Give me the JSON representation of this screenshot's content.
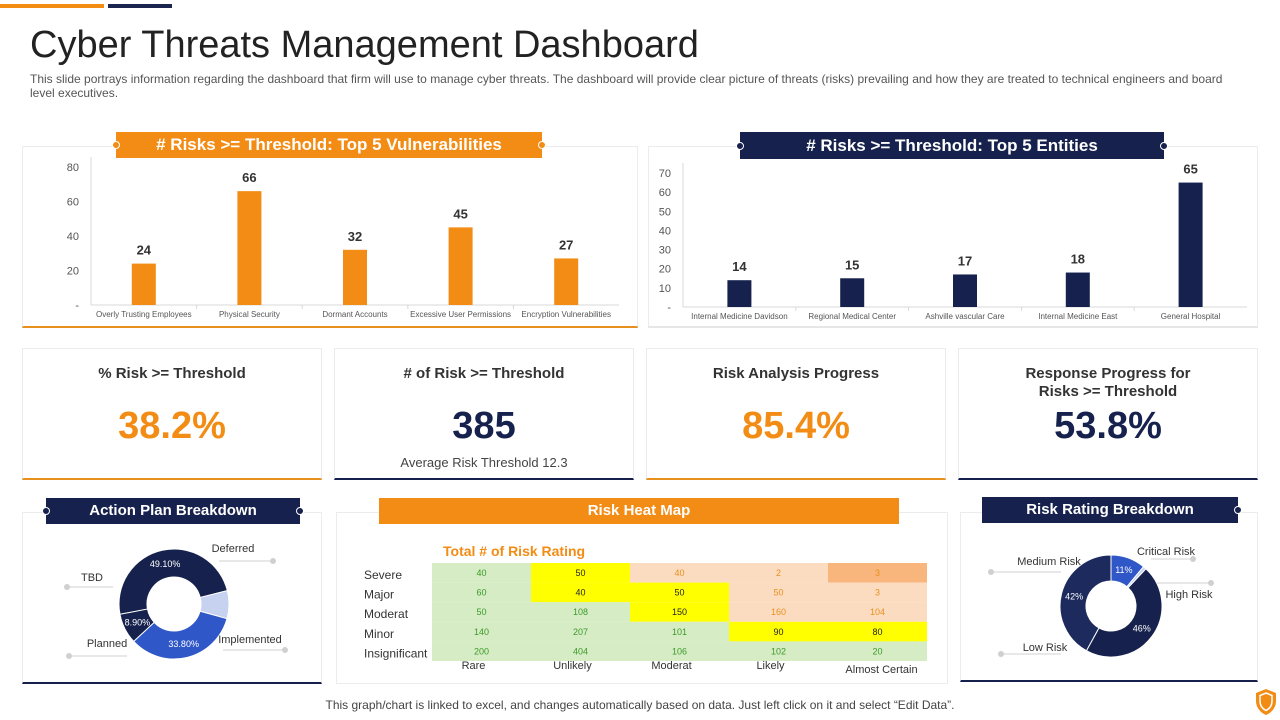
{
  "page": {
    "title": "Cyber Threats Management Dashboard",
    "subtitle": "This slide portrays information regarding the dashboard that firm will use to manage cyber threats. The dashboard will provide clear picture of threats (risks) prevailing and how they are treated to technical engineers and board level executives.",
    "footer": "This graph/chart is linked to excel, and changes automatically based on data. Just left click on it and select “Edit Data”."
  },
  "colors": {
    "orange": "#f28c14",
    "navy": "#16224d",
    "blue": "#2f57c8",
    "light_blue": "#c6d2f0"
  },
  "vuln_chart": {
    "header": "# Risks >= Threshold: Top 5 Vulnerabilities",
    "chart_data": {
      "type": "bar",
      "categories": [
        "Overly Trusting Employees",
        "Physical Security",
        "Dormant Accounts",
        "Excessive User Permissions",
        "Encryption Vulnerabilities"
      ],
      "values": [
        24,
        66,
        32,
        45,
        27
      ],
      "yticks": [
        "-",
        "20",
        "40",
        "60",
        "80"
      ],
      "ylim": [
        0,
        80
      ]
    }
  },
  "entity_chart": {
    "header": "# Risks >= Threshold: Top 5 Entities",
    "chart_data": {
      "type": "bar",
      "categories": [
        "Internal Medicine Davidson",
        "Regional Medical Center",
        "Ashville vascular Care",
        "Internal Medicine East",
        "General Hospital"
      ],
      "values": [
        14,
        15,
        17,
        18,
        65
      ],
      "yticks": [
        "-",
        "10",
        "20",
        "30",
        "40",
        "50",
        "60",
        "70"
      ],
      "ylim": [
        0,
        70
      ]
    }
  },
  "kpis": [
    {
      "label": "% Risk >= Threshold",
      "value": "38.2%",
      "sub": "",
      "color": "#f28c14"
    },
    {
      "label": "# of Risk >= Threshold",
      "value": "385",
      "sub": "Average  Risk Threshold  12.3",
      "color": "#16224d"
    },
    {
      "label": "Risk Analysis Progress",
      "value": "85.4%",
      "sub": "",
      "color": "#f28c14"
    },
    {
      "label": "Response Progress for Risks >= Threshold",
      "value": "53.8%",
      "sub": "",
      "color": "#16224d"
    }
  ],
  "action_plan": {
    "header": "Action Plan Breakdown",
    "chart_data": {
      "type": "pie",
      "labels": [
        "TBD",
        "Deferred",
        "Implemented",
        "Planned"
      ],
      "values": [
        49.1,
        8.2,
        33.8,
        8.9
      ],
      "value_labels": [
        "49.10%",
        "",
        "33.80%",
        "8.90%"
      ]
    }
  },
  "heat_map": {
    "header": "Risk Heat Map",
    "title": "Total # of Risk Rating",
    "chart_data": {
      "type": "heatmap",
      "rows": [
        "Severe",
        "Major",
        "Moderat",
        "Minor",
        "Insignificant"
      ],
      "cols": [
        "Rare",
        "Unlikely",
        "Moderat",
        "Likely",
        "Almost Certain"
      ],
      "values": [
        [
          40,
          50,
          40,
          2,
          3
        ],
        [
          60,
          40,
          50,
          50,
          3
        ],
        [
          50,
          108,
          150,
          160,
          104
        ],
        [
          140,
          207,
          101,
          90,
          80
        ],
        [
          200,
          404,
          106,
          102,
          20
        ]
      ],
      "cell_colors": [
        [
          "green",
          "yellow",
          "peach",
          "peach",
          "orange"
        ],
        [
          "green",
          "yellow",
          "yellow",
          "peach",
          "peach"
        ],
        [
          "green",
          "green",
          "yellow",
          "peach",
          "peach"
        ],
        [
          "green",
          "green",
          "green",
          "yellow",
          "yellow"
        ],
        [
          "green",
          "green",
          "green",
          "green",
          "green"
        ]
      ]
    }
  },
  "risk_rating": {
    "header": "Risk Rating Breakdown",
    "chart_data": {
      "type": "pie",
      "labels": [
        "Critical Risk",
        "High Risk",
        "Low Risk",
        "Medium Risk"
      ],
      "values": [
        11,
        1,
        46,
        42
      ],
      "value_labels": [
        "11%",
        "",
        "46%",
        "42%"
      ]
    }
  }
}
